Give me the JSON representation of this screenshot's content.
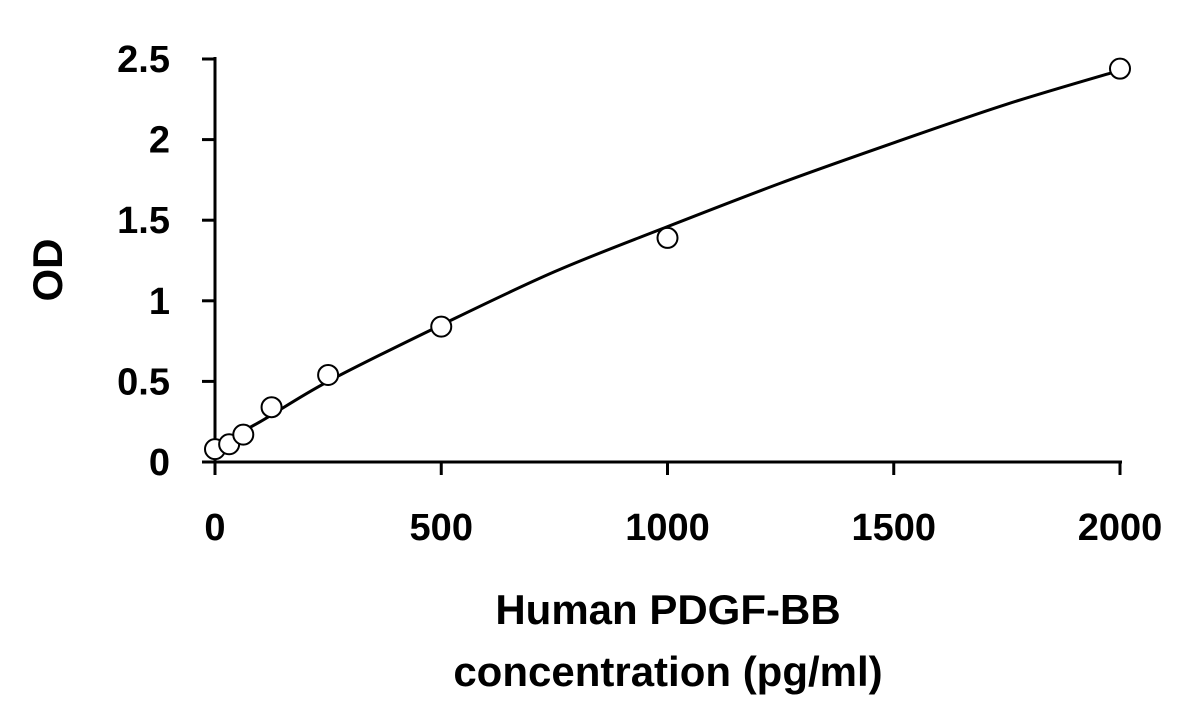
{
  "chart_data": {
    "type": "scatter",
    "title": "",
    "xlabel_lines": [
      "Human PDGF-BB",
      "concentration (pg/ml)"
    ],
    "ylabel": "OD",
    "xlim": [
      0,
      2000
    ],
    "ylim": [
      0,
      2.5
    ],
    "x_ticks": [
      0,
      500,
      1000,
      1500,
      2000
    ],
    "x_tick_labels": [
      "0",
      "500",
      "1000",
      "1500",
      "2000"
    ],
    "y_ticks": [
      0,
      0.5,
      1,
      1.5,
      2,
      2.5
    ],
    "y_tick_labels": [
      "0",
      "0.5",
      "1",
      "1.5",
      "2",
      "2.5"
    ],
    "grid": false,
    "legend": "none",
    "marker": "open-circle",
    "points": [
      {
        "x": 0,
        "y": 0.08
      },
      {
        "x": 31.25,
        "y": 0.11
      },
      {
        "x": 62.5,
        "y": 0.17
      },
      {
        "x": 125,
        "y": 0.34
      },
      {
        "x": 250,
        "y": 0.54
      },
      {
        "x": 500,
        "y": 0.84
      },
      {
        "x": 1000,
        "y": 1.39
      },
      {
        "x": 2000,
        "y": 2.44
      }
    ],
    "fit_curve": [
      {
        "x": 0,
        "y": 0.1
      },
      {
        "x": 100,
        "y": 0.25
      },
      {
        "x": 250,
        "y": 0.5
      },
      {
        "x": 500,
        "y": 0.85
      },
      {
        "x": 750,
        "y": 1.18
      },
      {
        "x": 1000,
        "y": 1.46
      },
      {
        "x": 1250,
        "y": 1.73
      },
      {
        "x": 1500,
        "y": 1.98
      },
      {
        "x": 1750,
        "y": 2.22
      },
      {
        "x": 2000,
        "y": 2.43
      }
    ],
    "colors": {
      "axis": "#000000",
      "curve": "#000000",
      "marker_stroke": "#000000",
      "marker_fill": "#ffffff"
    }
  }
}
